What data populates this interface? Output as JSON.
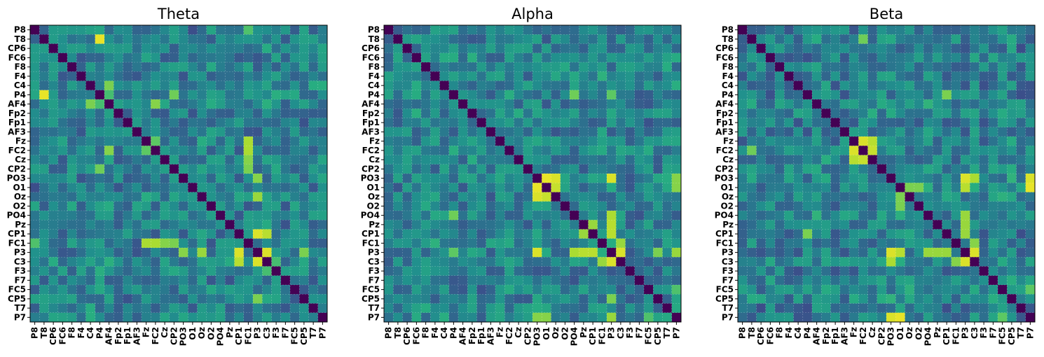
{
  "chart_data": [
    {
      "type": "heatmap",
      "title": "Theta",
      "channels": [
        "P8",
        "T8",
        "CP6",
        "FC6",
        "F8",
        "F4",
        "C4",
        "P4",
        "AF4",
        "Fp2",
        "Fp1",
        "AF3",
        "Fz",
        "FC2",
        "Cz",
        "CP2",
        "PO3",
        "O1",
        "Oz",
        "O2",
        "PO4",
        "Pz",
        "CP1",
        "FC1",
        "P3",
        "C3",
        "F3",
        "F7",
        "FC5",
        "CP5",
        "T7",
        "P7"
      ],
      "colormap": "viridis",
      "value_range": [
        0,
        1
      ],
      "diagonal": 0,
      "baseline": 0.45,
      "hotspots": [
        {
          "a": "P4",
          "b": "T8",
          "v": 0.97
        },
        {
          "a": "P3",
          "b": "CP1",
          "v": 0.95
        },
        {
          "a": "P3",
          "b": "C3",
          "v": 0.95
        },
        {
          "a": "C3",
          "b": "CP1",
          "v": 0.9
        },
        {
          "a": "FC1",
          "b": "FC2",
          "v": 0.88
        },
        {
          "a": "FC1",
          "b": "Fz",
          "v": 0.88
        },
        {
          "a": "FC1",
          "b": "Cz",
          "v": 0.82
        },
        {
          "a": "FC1",
          "b": "CP2",
          "v": 0.8
        },
        {
          "a": "AF4",
          "b": "FC2",
          "v": 0.82
        },
        {
          "a": "AF4",
          "b": "C4",
          "v": 0.8
        },
        {
          "a": "P3",
          "b": "Oz",
          "v": 0.85
        },
        {
          "a": "PO3",
          "b": "P3",
          "v": 0.82
        },
        {
          "a": "P3",
          "b": "CP5",
          "v": 0.8
        },
        {
          "a": "P4",
          "b": "CP2",
          "v": 0.78
        },
        {
          "a": "FC2",
          "b": "Fz",
          "v": 0.75
        },
        {
          "a": "FC1",
          "b": "P8",
          "v": 0.72
        },
        {
          "a": "F3",
          "b": "C3",
          "v": 0.7
        },
        {
          "a": "P4",
          "b": "AF4",
          "v": 0.7
        }
      ],
      "cool_channels": [
        "Fp1",
        "O1",
        "F7"
      ]
    },
    {
      "type": "heatmap",
      "title": "Alpha",
      "channels": [
        "P8",
        "T8",
        "CP6",
        "FC6",
        "F8",
        "F4",
        "C4",
        "P4",
        "AF4",
        "Fp2",
        "Fp1",
        "AF3",
        "Fz",
        "FC2",
        "Cz",
        "CP2",
        "PO3",
        "O1",
        "Oz",
        "O2",
        "PO4",
        "Pz",
        "CP1",
        "FC1",
        "P3",
        "C3",
        "F3",
        "F7",
        "FC5",
        "CP5",
        "T7",
        "P7"
      ],
      "colormap": "viridis",
      "value_range": [
        0,
        1
      ],
      "diagonal": 0,
      "baseline": 0.45,
      "hotspots": [
        {
          "a": "O1",
          "b": "PO3",
          "v": 0.97
        },
        {
          "a": "Oz",
          "b": "PO3",
          "v": 0.95
        },
        {
          "a": "Oz",
          "b": "O1",
          "v": 0.92
        },
        {
          "a": "P3",
          "b": "PO3",
          "v": 0.95
        },
        {
          "a": "P3",
          "b": "C3",
          "v": 0.95
        },
        {
          "a": "P3",
          "b": "CP1",
          "v": 0.9
        },
        {
          "a": "P3",
          "b": "Pz",
          "v": 0.9
        },
        {
          "a": "P3",
          "b": "PO4",
          "v": 0.88
        },
        {
          "a": "P3",
          "b": "P7",
          "v": 0.85
        },
        {
          "a": "C3",
          "b": "FC1",
          "v": 0.85
        },
        {
          "a": "Pz",
          "b": "CP1",
          "v": 0.85
        },
        {
          "a": "PO3",
          "b": "P7",
          "v": 0.82
        },
        {
          "a": "O1",
          "b": "P7",
          "v": 0.82
        },
        {
          "a": "P3",
          "b": "CP5",
          "v": 0.8
        },
        {
          "a": "P4",
          "b": "PO4",
          "v": 0.78
        },
        {
          "a": "P4",
          "b": "P3",
          "v": 0.75
        },
        {
          "a": "P7",
          "b": "FC5",
          "v": 0.72
        }
      ],
      "cool_channels": [
        "Fp1",
        "F3",
        "F7"
      ]
    },
    {
      "type": "heatmap",
      "title": "Beta",
      "channels": [
        "P8",
        "T8",
        "CP6",
        "FC6",
        "F8",
        "F4",
        "C4",
        "P4",
        "AF4",
        "Fp2",
        "Fp1",
        "AF3",
        "Fz",
        "FC2",
        "Cz",
        "CP2",
        "PO3",
        "O1",
        "Oz",
        "O2",
        "PO4",
        "Pz",
        "CP1",
        "FC1",
        "P3",
        "C3",
        "F3",
        "F7",
        "FC5",
        "CP5",
        "T7",
        "P7"
      ],
      "colormap": "viridis",
      "value_range": [
        0,
        1
      ],
      "diagonal": 0,
      "baseline": 0.45,
      "hotspots": [
        {
          "a": "FC2",
          "b": "Fz",
          "v": 0.95
        },
        {
          "a": "Cz",
          "b": "Fz",
          "v": 0.9
        },
        {
          "a": "Cz",
          "b": "FC2",
          "v": 0.92
        },
        {
          "a": "O1",
          "b": "P7",
          "v": 0.97
        },
        {
          "a": "PO3",
          "b": "P7",
          "v": 0.95
        },
        {
          "a": "PO3",
          "b": "P3",
          "v": 0.95
        },
        {
          "a": "P3",
          "b": "C3",
          "v": 0.95
        },
        {
          "a": "P3",
          "b": "O1",
          "v": 0.9
        },
        {
          "a": "P3",
          "b": "PO4",
          "v": 0.85
        },
        {
          "a": "P3",
          "b": "Pz",
          "v": 0.85
        },
        {
          "a": "P3",
          "b": "CP1",
          "v": 0.85
        },
        {
          "a": "PO3",
          "b": "C3",
          "v": 0.88
        },
        {
          "a": "C3",
          "b": "FC1",
          "v": 0.82
        },
        {
          "a": "O1",
          "b": "Oz",
          "v": 0.8
        },
        {
          "a": "O1",
          "b": "O2",
          "v": 0.8
        },
        {
          "a": "P4",
          "b": "CP1",
          "v": 0.8
        },
        {
          "a": "P7",
          "b": "FC5",
          "v": 0.75
        },
        {
          "a": "FC2",
          "b": "T8",
          "v": 0.78
        }
      ],
      "cool_channels": [
        "Fp1",
        "F3",
        "T7"
      ]
    }
  ]
}
